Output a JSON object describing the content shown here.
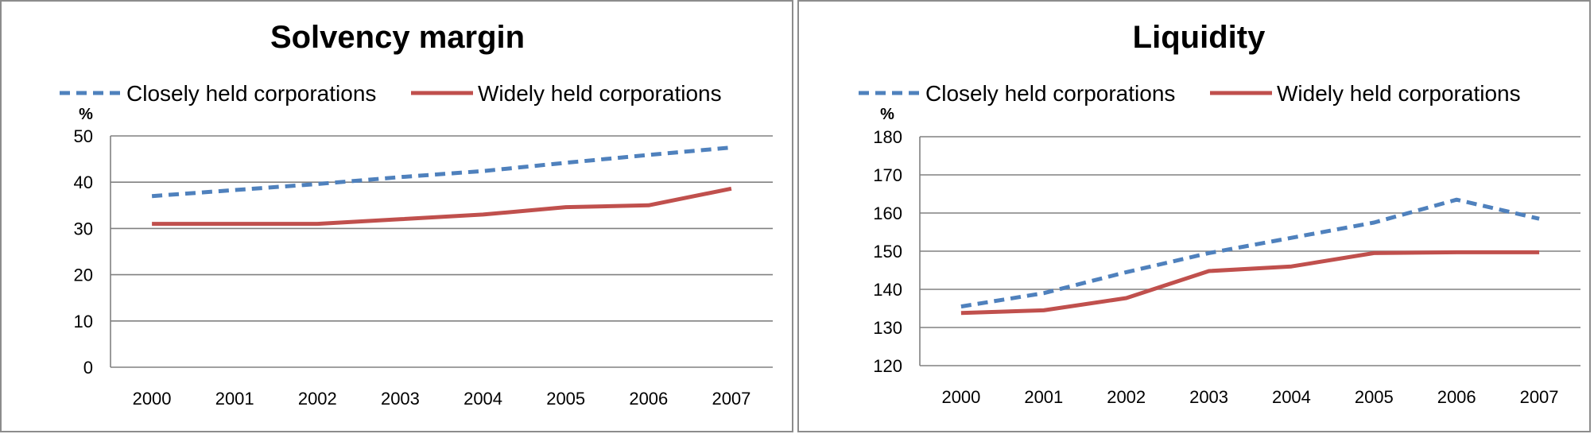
{
  "colors": {
    "closely": "#4F81BD",
    "widely": "#C0504D"
  },
  "chart_data": [
    {
      "type": "line",
      "title": "Solvency margin",
      "ylabel": "%",
      "xlabel": "",
      "categories": [
        "2000",
        "2001",
        "2002",
        "2003",
        "2004",
        "2005",
        "2006",
        "2007"
      ],
      "ylim": [
        0,
        50
      ],
      "yticks": [
        0,
        10,
        20,
        30,
        40,
        50
      ],
      "grid": true,
      "legend_position": "top",
      "series": [
        {
          "name": "Closely held corporations",
          "style": "dashed",
          "color": "#4F81BD",
          "values": [
            37,
            38.3,
            39.6,
            41.1,
            42.4,
            44.2,
            45.9,
            47.5
          ]
        },
        {
          "name": "Widely held corporations",
          "style": "solid",
          "color": "#C0504D",
          "values": [
            31,
            31,
            31,
            32,
            33,
            34.6,
            35,
            38.6
          ]
        }
      ]
    },
    {
      "type": "line",
      "title": "Liquidity",
      "ylabel": "%",
      "xlabel": "",
      "categories": [
        "2000",
        "2001",
        "2002",
        "2003",
        "2004",
        "2005",
        "2006",
        "2007"
      ],
      "ylim": [
        120,
        180
      ],
      "yticks": [
        120,
        130,
        140,
        150,
        160,
        170,
        180
      ],
      "grid": true,
      "legend_position": "top",
      "series": [
        {
          "name": "Closely held corporations",
          "style": "dashed",
          "color": "#4F81BD",
          "values": [
            135.5,
            139,
            144.5,
            149.5,
            153.5,
            157.5,
            163.5,
            158.5
          ]
        },
        {
          "name": "Widely held corporations",
          "style": "solid",
          "color": "#C0504D",
          "values": [
            133.8,
            134.5,
            137.7,
            144.8,
            146,
            149.5,
            149.7,
            149.7
          ]
        }
      ]
    }
  ]
}
